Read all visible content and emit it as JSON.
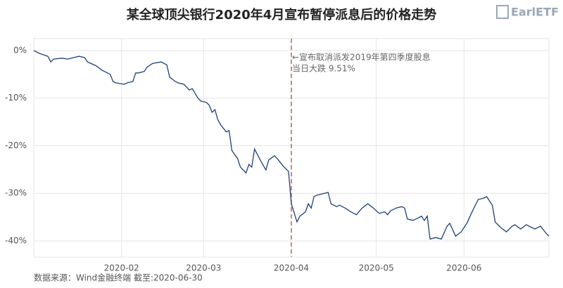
{
  "chart_data": {
    "type": "line",
    "title": "某全球顶尖银行2020年4月宣布暂停派息后的价格走势",
    "logo": "EarlETF",
    "source": "数据来源：Wind金融终端 截至:2020-06-30",
    "color": "#1f3f7a",
    "grid": true,
    "x": [
      0,
      2,
      5,
      6,
      7,
      10,
      12,
      14,
      16,
      18,
      19,
      22,
      24,
      27,
      28,
      29,
      32,
      33,
      35,
      36,
      37,
      39,
      40,
      42,
      45,
      47,
      48,
      50,
      51,
      53,
      55,
      56,
      58,
      59,
      61,
      62,
      63,
      64,
      65,
      66,
      68,
      69,
      70,
      72,
      73,
      75,
      76,
      77,
      78,
      80,
      82,
      83,
      85,
      86,
      88,
      90,
      91,
      93,
      94,
      96,
      97,
      98,
      99,
      100,
      104,
      105,
      107,
      108,
      110,
      112,
      114,
      116,
      118,
      120,
      122,
      124,
      125,
      126,
      128,
      130,
      131,
      132,
      134,
      136,
      137,
      138,
      139,
      140,
      142,
      144,
      146,
      147,
      149,
      151,
      153,
      155,
      157,
      159,
      160,
      162,
      163,
      165,
      167,
      169,
      170,
      172,
      174,
      175,
      177,
      179,
      181,
      182
    ],
    "values": [
      0.0,
      -0.6,
      -1.2,
      -2.4,
      -1.8,
      -1.6,
      -1.8,
      -1.5,
      -1.2,
      -1.5,
      -2.4,
      -3.2,
      -4.1,
      -5.0,
      -6.5,
      -6.8,
      -7.1,
      -6.8,
      -6.5,
      -4.7,
      -4.7,
      -4.4,
      -3.5,
      -2.7,
      -2.4,
      -3.0,
      -5.6,
      -6.5,
      -6.8,
      -7.1,
      -8.3,
      -8.0,
      -10.0,
      -10.6,
      -10.9,
      -11.5,
      -13.0,
      -12.4,
      -14.5,
      -15.6,
      -17.1,
      -16.8,
      -21.0,
      -22.7,
      -24.5,
      -25.7,
      -23.9,
      -24.5,
      -20.7,
      -23.0,
      -25.1,
      -23.0,
      -22.1,
      -22.7,
      -24.2,
      -25.4,
      -32.2,
      -36.0,
      -34.8,
      -33.9,
      -32.2,
      -33.1,
      -30.7,
      -30.4,
      -29.8,
      -32.2,
      -32.8,
      -32.5,
      -33.1,
      -33.9,
      -34.5,
      -33.1,
      -32.2,
      -33.1,
      -34.2,
      -33.9,
      -34.5,
      -33.7,
      -33.1,
      -32.8,
      -33.1,
      -35.4,
      -35.7,
      -35.1,
      -34.8,
      -35.7,
      -34.8,
      -39.6,
      -39.3,
      -39.6,
      -36.9,
      -36.3,
      -39.0,
      -38.1,
      -36.3,
      -33.7,
      -31.3,
      -31.0,
      -30.7,
      -32.5,
      -36.0,
      -37.2,
      -38.1,
      -36.9,
      -36.6,
      -37.5,
      -36.6,
      -36.9,
      -37.5,
      -36.9,
      -38.4,
      -39.0
    ],
    "xlim": [
      0,
      182
    ],
    "xticks": [
      {
        "value": 31,
        "label": "2020-02"
      },
      {
        "value": 60,
        "label": "2020-03"
      },
      {
        "value": 91,
        "label": "2020-04"
      },
      {
        "value": 121,
        "label": "2020-05"
      },
      {
        "value": 152,
        "label": "2020-06"
      }
    ],
    "ylim": [
      -43.4,
      2.5
    ],
    "yticks": [
      {
        "value": 0,
        "label": "0%"
      },
      {
        "value": -10,
        "label": "-10%"
      },
      {
        "value": -20,
        "label": "-20%"
      },
      {
        "value": -30,
        "label": "-30%"
      },
      {
        "value": -40,
        "label": "-40%"
      }
    ],
    "event": {
      "x": 91,
      "color": "#d9534f",
      "annotation": [
        "←宣布取消派发2019年第四季度股息",
        "当日大跌 9.51%"
      ]
    }
  }
}
